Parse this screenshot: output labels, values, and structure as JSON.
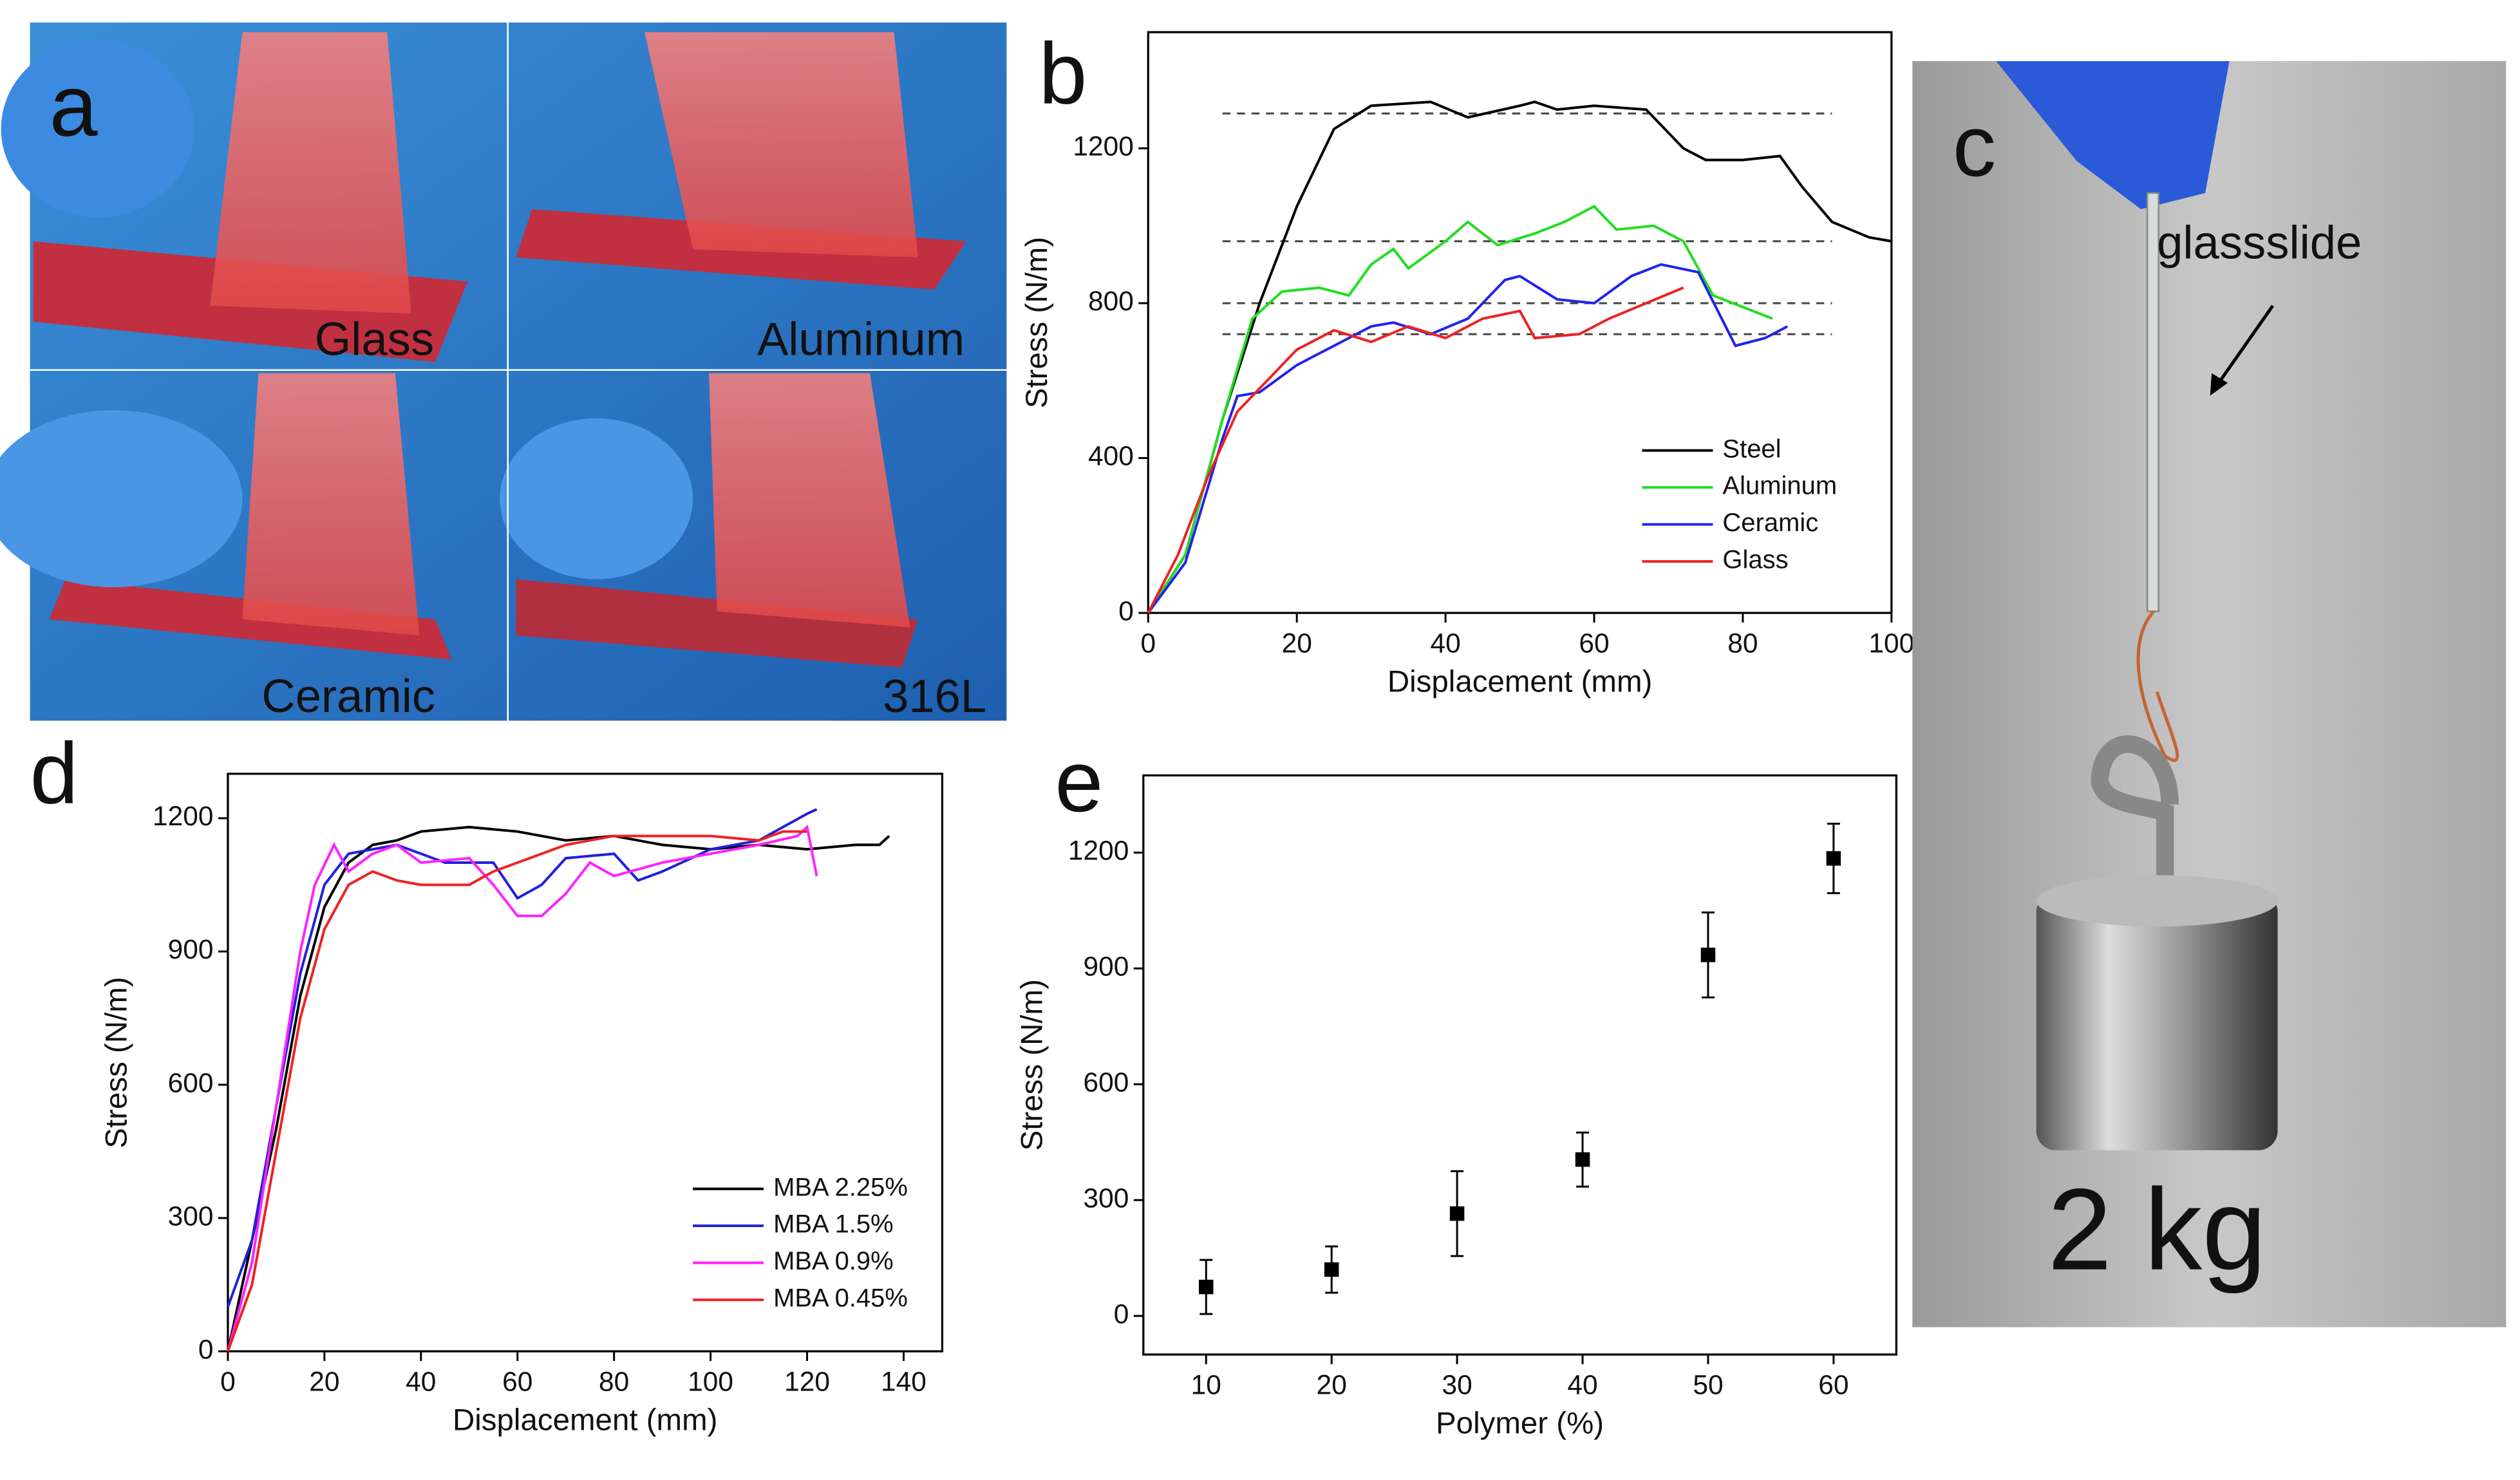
{
  "panel_labels": [
    "a",
    "b",
    "c",
    "d",
    "e"
  ],
  "photo_a": {
    "labels": [
      "Glass",
      "Aluminum",
      "Ceramic",
      "316L"
    ]
  },
  "photo_c": {
    "label": "glassslide",
    "weight": "2 kg"
  },
  "chart_data": [
    {
      "type": "line",
      "xlabel": "Displacement (mm)",
      "ylabel": "Stress (N/m)",
      "xlim": [
        0,
        100
      ],
      "ylim": [
        0,
        1500
      ],
      "xticks": [
        0,
        20,
        40,
        60,
        80,
        100
      ],
      "yticks": [
        0,
        400,
        800,
        1200
      ],
      "legend": "lower right",
      "reference_lines": [
        1290,
        960,
        800,
        720
      ],
      "reference_range": [
        10,
        92
      ],
      "series": [
        {
          "name": "Steel",
          "color": "#000000",
          "x": [
            0,
            5,
            10,
            15,
            20,
            25,
            30,
            38,
            43,
            50,
            52,
            55,
            60,
            67,
            72,
            75,
            80,
            85,
            88,
            92,
            97,
            100
          ],
          "values": [
            0,
            150,
            500,
            800,
            1050,
            1250,
            1310,
            1320,
            1280,
            1310,
            1320,
            1300,
            1310,
            1300,
            1200,
            1170,
            1170,
            1180,
            1100,
            1010,
            970,
            960
          ]
        },
        {
          "name": "Aluminum",
          "color": "#22dd22",
          "x": [
            0,
            5,
            10,
            14,
            18,
            23,
            27,
            30,
            33,
            35,
            40,
            43,
            47,
            52,
            56,
            60,
            63,
            68,
            72,
            76,
            80,
            84
          ],
          "values": [
            0,
            150,
            500,
            760,
            830,
            840,
            820,
            900,
            940,
            890,
            960,
            1010,
            950,
            980,
            1010,
            1050,
            990,
            1000,
            960,
            820,
            790,
            760
          ]
        },
        {
          "name": "Ceramic",
          "color": "#2222ee",
          "x": [
            0,
            5,
            10,
            12,
            15,
            20,
            25,
            30,
            33,
            38,
            43,
            48,
            50,
            55,
            60,
            65,
            69,
            74,
            79,
            83,
            86
          ],
          "values": [
            0,
            130,
            450,
            560,
            570,
            640,
            690,
            740,
            750,
            720,
            760,
            860,
            870,
            810,
            800,
            870,
            900,
            880,
            690,
            710,
            740
          ]
        },
        {
          "name": "Glass",
          "color": "#ee2222",
          "x": [
            0,
            4,
            8,
            12,
            16,
            20,
            25,
            30,
            35,
            40,
            45,
            50,
            52,
            58,
            62,
            67,
            72
          ],
          "values": [
            0,
            150,
            350,
            520,
            600,
            680,
            730,
            700,
            740,
            710,
            760,
            780,
            710,
            720,
            760,
            800,
            840
          ]
        }
      ]
    },
    {
      "type": "line",
      "xlabel": "Displacement (mm)",
      "ylabel": "Stress (N/m)",
      "xlim": [
        0,
        148
      ],
      "ylim": [
        0,
        1300
      ],
      "xticks": [
        0,
        20,
        40,
        60,
        80,
        100,
        120,
        140
      ],
      "yticks": [
        0,
        300,
        600,
        900,
        1200
      ],
      "legend": "lower right",
      "series": [
        {
          "name": "MBA 2.25%",
          "color": "#000000",
          "x": [
            0,
            5,
            10,
            15,
            20,
            25,
            30,
            35,
            40,
            50,
            60,
            70,
            80,
            90,
            100,
            110,
            120,
            130,
            135,
            137
          ],
          "values": [
            0,
            250,
            500,
            800,
            1000,
            1100,
            1140,
            1150,
            1170,
            1180,
            1170,
            1150,
            1160,
            1140,
            1130,
            1140,
            1130,
            1140,
            1140,
            1160
          ]
        },
        {
          "name": "MBA 1.5%",
          "color": "#2020dd",
          "x": [
            0,
            5,
            10,
            15,
            20,
            25,
            35,
            45,
            55,
            60,
            65,
            70,
            80,
            85,
            90,
            100,
            110,
            115,
            120,
            122
          ],
          "values": [
            100,
            250,
            550,
            850,
            1050,
            1120,
            1140,
            1100,
            1100,
            1020,
            1050,
            1110,
            1120,
            1060,
            1080,
            1130,
            1150,
            1180,
            1210,
            1220
          ]
        },
        {
          "name": "MBA 0.9%",
          "color": "#ff22ff",
          "x": [
            0,
            5,
            10,
            15,
            18,
            22,
            25,
            30,
            35,
            40,
            50,
            55,
            60,
            65,
            70,
            75,
            80,
            90,
            100,
            110,
            118,
            120,
            122
          ],
          "values": [
            0,
            200,
            550,
            900,
            1050,
            1140,
            1080,
            1120,
            1140,
            1100,
            1110,
            1050,
            980,
            980,
            1030,
            1100,
            1070,
            1100,
            1120,
            1140,
            1160,
            1180,
            1070
          ]
        },
        {
          "name": "MBA 0.45%",
          "color": "#ee2222",
          "x": [
            0,
            5,
            10,
            15,
            20,
            25,
            30,
            35,
            40,
            50,
            55,
            60,
            70,
            80,
            100,
            110,
            115,
            120
          ],
          "values": [
            0,
            150,
            450,
            750,
            950,
            1050,
            1080,
            1060,
            1050,
            1050,
            1080,
            1100,
            1140,
            1160,
            1160,
            1150,
            1170,
            1170
          ]
        }
      ]
    },
    {
      "type": "scatter",
      "xlabel": "Polymer (%)",
      "ylabel": "Stress (N/m)",
      "xlim": [
        5,
        65
      ],
      "ylim": [
        -100,
        1400
      ],
      "xticks": [
        10,
        20,
        30,
        40,
        50,
        60
      ],
      "yticks": [
        0,
        300,
        600,
        900,
        1200
      ],
      "color": "#000000",
      "x": [
        10,
        20,
        30,
        40,
        50,
        60
      ],
      "values": [
        75,
        120,
        265,
        405,
        935,
        1185
      ],
      "errors": [
        70,
        60,
        110,
        70,
        110,
        90
      ]
    }
  ]
}
